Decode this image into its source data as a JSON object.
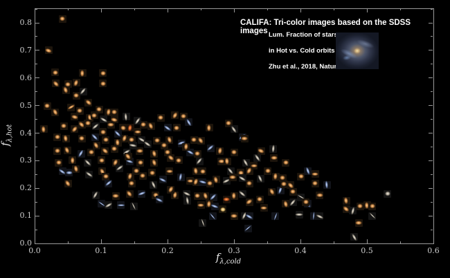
{
  "header": {
    "title": "CALIFA: Tri-color images based on the SDSS images",
    "annotation_lines": [
      "Lum. Fraction of stars",
      "in Hot vs. Cold orbits",
      "Zhu et al., 2018, Nature"
    ]
  },
  "inset": {
    "description": "spiral-galaxy-thumbnail"
  },
  "colors": {
    "background": "#000000",
    "frame": "#9a9a9a",
    "tick_label": "#cccccc",
    "title_text": "#ffffff"
  },
  "chart_data": {
    "type": "scatter",
    "title": "CALIFA: Tri-color images based on the SDSS images",
    "xlabel_base": "f",
    "xlabel_sub": "λ,cold",
    "ylabel_base": "f",
    "ylabel_sub": "λ,hot",
    "xlim": [
      0,
      0.6
    ],
    "ylim": [
      0,
      0.85
    ],
    "x_ticks": [
      "0.0",
      "0.1",
      "0.2",
      "0.3",
      "0.4",
      "0.5",
      "0.6"
    ],
    "y_ticks": [
      "0.0",
      "0.1",
      "0.2",
      "0.3",
      "0.4",
      "0.5",
      "0.6",
      "0.7",
      "0.8"
    ],
    "grid": false,
    "legend": "none",
    "marker": "galaxy-thumbnail",
    "palette": {
      "o": {
        "core": "#ffd9a0",
        "mid": "#cd8845",
        "bg": "#1d150c"
      },
      "r": {
        "core": "#ffb474",
        "mid": "#cf5a1e",
        "bg": "#1d120a"
      },
      "b": {
        "core": "#dbe6fb",
        "mid": "#8098c8",
        "bg": "#12141a"
      },
      "w": {
        "core": "#f2efe6",
        "mid": "#b0a898",
        "bg": "#141414"
      },
      "y": {
        "core": "#fff3cd",
        "mid": "#e6bc6a",
        "bg": "#1d170c"
      }
    },
    "elongation_classes": {
      "1": [
        8,
        7
      ],
      "2": [
        10,
        5.5
      ],
      "3": [
        12,
        3.5
      ],
      "4": [
        13,
        2.2
      ]
    },
    "points": [
      [
        0.042,
        0.815,
        "o",
        0,
        1
      ],
      [
        0.021,
        0.7,
        "o",
        20,
        2
      ],
      [
        0.031,
        0.62,
        "o",
        0,
        1
      ],
      [
        0.072,
        0.617,
        "o",
        90,
        2
      ],
      [
        0.103,
        0.617,
        "o",
        0,
        1
      ],
      [
        0.032,
        0.58,
        "o",
        45,
        2
      ],
      [
        0.05,
        0.577,
        "o",
        0,
        1
      ],
      [
        0.063,
        0.582,
        "o",
        110,
        2
      ],
      [
        0.103,
        0.58,
        "o",
        0,
        1
      ],
      [
        0.047,
        0.556,
        "o",
        70,
        2
      ],
      [
        0.063,
        0.536,
        "o",
        0,
        1
      ],
      [
        0.073,
        0.551,
        "w",
        130,
        3
      ],
      [
        0.019,
        0.499,
        "o",
        0,
        1
      ],
      [
        0.031,
        0.476,
        "o",
        60,
        2
      ],
      [
        0.055,
        0.494,
        "o",
        150,
        3
      ],
      [
        0.068,
        0.481,
        "o",
        0,
        1
      ],
      [
        0.081,
        0.511,
        "o",
        40,
        2
      ],
      [
        0.097,
        0.486,
        "o",
        0,
        1
      ],
      [
        0.111,
        0.476,
        "o",
        100,
        2
      ],
      [
        0.12,
        0.476,
        "o",
        0,
        1
      ],
      [
        0.083,
        0.456,
        "o",
        75,
        2
      ],
      [
        0.104,
        0.449,
        "w",
        30,
        3
      ],
      [
        0.19,
        0.456,
        "o",
        0,
        1
      ],
      [
        0.211,
        0.464,
        "o",
        120,
        2
      ],
      [
        0.224,
        0.461,
        "o",
        0,
        1
      ],
      [
        0.232,
        0.439,
        "b",
        60,
        3
      ],
      [
        0.014,
        0.414,
        "o",
        85,
        2
      ],
      [
        0.044,
        0.426,
        "o",
        0,
        1
      ],
      [
        0.071,
        0.431,
        "o",
        45,
        2
      ],
      [
        0.08,
        0.436,
        "o",
        0,
        1
      ],
      [
        0.092,
        0.424,
        "w",
        140,
        3
      ],
      [
        0.115,
        0.431,
        "o",
        0,
        2
      ],
      [
        0.133,
        0.419,
        "o",
        20,
        1
      ],
      [
        0.144,
        0.419,
        "r",
        100,
        2
      ],
      [
        0.164,
        0.431,
        "o",
        0,
        1
      ],
      [
        0.175,
        0.426,
        "o",
        65,
        2
      ],
      [
        0.2,
        0.419,
        "b",
        35,
        3
      ],
      [
        0.214,
        0.419,
        "o",
        0,
        1
      ],
      [
        0.263,
        0.419,
        "o",
        90,
        2
      ],
      [
        0.292,
        0.436,
        "o",
        0,
        1
      ],
      [
        0.3,
        0.414,
        "w",
        55,
        3
      ],
      [
        0.12,
        0.45,
        "o",
        15,
        2
      ],
      [
        0.155,
        0.445,
        "w",
        125,
        3
      ],
      [
        0.034,
        0.386,
        "o",
        0,
        1
      ],
      [
        0.047,
        0.381,
        "o",
        80,
        2
      ],
      [
        0.071,
        0.381,
        "o",
        0,
        1
      ],
      [
        0.091,
        0.386,
        "b",
        45,
        3
      ],
      [
        0.107,
        0.376,
        "o",
        0,
        1
      ],
      [
        0.135,
        0.381,
        "o",
        110,
        2
      ],
      [
        0.146,
        0.376,
        "o",
        0,
        1
      ],
      [
        0.161,
        0.376,
        "w",
        30,
        3
      ],
      [
        0.184,
        0.373,
        "o",
        0,
        1
      ],
      [
        0.203,
        0.376,
        "o",
        70,
        2
      ],
      [
        0.313,
        0.386,
        "b",
        140,
        3
      ],
      [
        0.316,
        0.381,
        "o",
        0,
        2
      ],
      [
        0.341,
        0.336,
        "o",
        25,
        2
      ],
      [
        0.359,
        0.343,
        "w",
        95,
        3
      ],
      [
        0.24,
        0.376,
        "o",
        0,
        1
      ],
      [
        0.25,
        0.373,
        "o",
        55,
        2
      ],
      [
        0.221,
        0.363,
        "b",
        160,
        3
      ],
      [
        0.125,
        0.365,
        "o",
        85,
        2
      ],
      [
        0.17,
        0.36,
        "w",
        35,
        3
      ],
      [
        0.034,
        0.336,
        "o",
        0,
        1
      ],
      [
        0.049,
        0.338,
        "o",
        65,
        2
      ],
      [
        0.07,
        0.326,
        "b",
        120,
        3
      ],
      [
        0.085,
        0.331,
        "o",
        0,
        1
      ],
      [
        0.106,
        0.336,
        "o",
        40,
        2
      ],
      [
        0.12,
        0.343,
        "o",
        0,
        1
      ],
      [
        0.139,
        0.331,
        "w",
        150,
        3
      ],
      [
        0.158,
        0.336,
        "o",
        0,
        2
      ],
      [
        0.18,
        0.326,
        "o",
        75,
        2
      ],
      [
        0.2,
        0.331,
        "o",
        0,
        1
      ],
      [
        0.234,
        0.331,
        "b",
        30,
        3
      ],
      [
        0.245,
        0.326,
        "o",
        0,
        1
      ],
      [
        0.279,
        0.336,
        "o",
        100,
        2
      ],
      [
        0.318,
        0.293,
        "w",
        60,
        3
      ],
      [
        0.33,
        0.281,
        "o",
        0,
        2
      ],
      [
        0.036,
        0.293,
        "o",
        0,
        1
      ],
      [
        0.057,
        0.301,
        "o",
        90,
        2
      ],
      [
        0.08,
        0.293,
        "w",
        45,
        3
      ],
      [
        0.101,
        0.301,
        "o",
        0,
        1
      ],
      [
        0.122,
        0.293,
        "o",
        115,
        2
      ],
      [
        0.143,
        0.298,
        "b",
        20,
        3
      ],
      [
        0.159,
        0.293,
        "o",
        0,
        1
      ],
      [
        0.18,
        0.293,
        "o",
        70,
        2
      ],
      [
        0.217,
        0.301,
        "o",
        0,
        1
      ],
      [
        0.248,
        0.298,
        "w",
        130,
        3
      ],
      [
        0.281,
        0.298,
        "o",
        0,
        2
      ],
      [
        0.29,
        0.298,
        "o",
        85,
        2
      ],
      [
        0.205,
        0.31,
        "o",
        40,
        2
      ],
      [
        0.378,
        0.293,
        "o",
        0,
        1
      ],
      [
        0.141,
        0.315,
        "o",
        50,
        2
      ],
      [
        0.042,
        0.261,
        "b",
        35,
        3
      ],
      [
        0.052,
        0.256,
        "b",
        0,
        2
      ],
      [
        0.102,
        0.261,
        "o",
        60,
        2
      ],
      [
        0.107,
        0.243,
        "o",
        0,
        1
      ],
      [
        0.128,
        0.273,
        "w",
        145,
        3
      ],
      [
        0.153,
        0.263,
        "o",
        0,
        1
      ],
      [
        0.144,
        0.243,
        "o",
        105,
        2
      ],
      [
        0.177,
        0.256,
        "o",
        0,
        1
      ],
      [
        0.193,
        0.231,
        "b",
        25,
        3
      ],
      [
        0.203,
        0.261,
        "o",
        0,
        2
      ],
      [
        0.243,
        0.263,
        "o",
        80,
        2
      ],
      [
        0.253,
        0.261,
        "o",
        0,
        1
      ],
      [
        0.295,
        0.263,
        "w",
        50,
        3
      ],
      [
        0.31,
        0.256,
        "o",
        0,
        1
      ],
      [
        0.323,
        0.263,
        "o",
        120,
        2
      ],
      [
        0.351,
        0.263,
        "o",
        0,
        1
      ],
      [
        0.411,
        0.263,
        "b",
        70,
        3
      ],
      [
        0.422,
        0.251,
        "o",
        0,
        2
      ],
      [
        0.313,
        0.236,
        "w",
        30,
        3
      ],
      [
        0.373,
        0.238,
        "o",
        0,
        1
      ],
      [
        0.363,
        0.243,
        "o",
        95,
        2
      ],
      [
        0.401,
        0.243,
        "o",
        0,
        1
      ],
      [
        0.05,
        0.218,
        "o",
        55,
        2
      ],
      [
        0.111,
        0.218,
        "b",
        140,
        3
      ],
      [
        0.146,
        0.218,
        "o",
        0,
        1
      ],
      [
        0.179,
        0.213,
        "w",
        65,
        3
      ],
      [
        0.234,
        0.226,
        "o",
        0,
        2
      ],
      [
        0.243,
        0.223,
        "o",
        110,
        2
      ],
      [
        0.253,
        0.223,
        "b",
        15,
        3
      ],
      [
        0.264,
        0.218,
        "o",
        0,
        1
      ],
      [
        0.273,
        0.231,
        "o",
        75,
        2
      ],
      [
        0.289,
        0.226,
        "w",
        155,
        3
      ],
      [
        0.323,
        0.218,
        "o",
        0,
        1
      ],
      [
        0.385,
        0.211,
        "o",
        45,
        2
      ],
      [
        0.422,
        0.218,
        "o",
        0,
        1
      ],
      [
        0.44,
        0.213,
        "b",
        85,
        3
      ],
      [
        0.092,
        0.175,
        "w",
        120,
        3
      ],
      [
        0.122,
        0.173,
        "o",
        0,
        2
      ],
      [
        0.143,
        0.18,
        "o",
        50,
        2
      ],
      [
        0.161,
        0.18,
        "b",
        160,
        3
      ],
      [
        0.182,
        0.175,
        "o",
        0,
        1
      ],
      [
        0.211,
        0.175,
        "o",
        100,
        2
      ],
      [
        0.229,
        0.18,
        "w",
        25,
        3
      ],
      [
        0.245,
        0.173,
        "o",
        0,
        1
      ],
      [
        0.257,
        0.173,
        "o",
        70,
        2
      ],
      [
        0.269,
        0.168,
        "b",
        135,
        3
      ],
      [
        0.289,
        0.16,
        "r",
        0,
        2
      ],
      [
        0.3,
        0.173,
        "o",
        90,
        2
      ],
      [
        0.313,
        0.18,
        "w",
        40,
        3
      ],
      [
        0.339,
        0.16,
        "o",
        0,
        1
      ],
      [
        0.357,
        0.188,
        "o",
        60,
        2
      ],
      [
        0.37,
        0.193,
        "b",
        110,
        3
      ],
      [
        0.389,
        0.188,
        "o",
        0,
        1
      ],
      [
        0.401,
        0.168,
        "w",
        30,
        4
      ],
      [
        0.429,
        0.175,
        "o",
        0,
        2
      ],
      [
        0.469,
        0.155,
        "o",
        80,
        2
      ],
      [
        0.531,
        0.18,
        "w",
        0,
        1
      ],
      [
        0.323,
        0.15,
        "o",
        145,
        2
      ],
      [
        0.411,
        0.143,
        "b",
        55,
        3
      ],
      [
        0.101,
        0.143,
        "b",
        35,
        4
      ],
      [
        0.111,
        0.138,
        "w",
        150,
        3
      ],
      [
        0.13,
        0.138,
        "b",
        0,
        3
      ],
      [
        0.149,
        0.135,
        "w",
        65,
        4
      ],
      [
        0.25,
        0.138,
        "o",
        0,
        2
      ],
      [
        0.263,
        0.143,
        "o",
        95,
        2
      ],
      [
        0.271,
        0.135,
        "b",
        20,
        3
      ],
      [
        0.283,
        0.123,
        "y",
        0,
        1
      ],
      [
        0.378,
        0.143,
        "o",
        75,
        2
      ],
      [
        0.389,
        0.148,
        "w",
        130,
        3
      ],
      [
        0.408,
        0.15,
        "o",
        0,
        1
      ],
      [
        0.469,
        0.125,
        "o",
        40,
        2
      ],
      [
        0.479,
        0.118,
        "w",
        105,
        3
      ],
      [
        0.49,
        0.135,
        "o",
        0,
        1
      ],
      [
        0.5,
        0.138,
        "o",
        85,
        2
      ],
      [
        0.508,
        0.135,
        "o",
        0,
        1
      ],
      [
        0.268,
        0.098,
        "b",
        50,
        4
      ],
      [
        0.3,
        0.1,
        "o",
        0,
        2
      ],
      [
        0.316,
        0.1,
        "w",
        115,
        3
      ],
      [
        0.323,
        0.098,
        "b",
        30,
        3
      ],
      [
        0.253,
        0.075,
        "w",
        70,
        4
      ],
      [
        0.321,
        0.055,
        "b",
        140,
        4
      ],
      [
        0.398,
        0.105,
        "w",
        0,
        3
      ],
      [
        0.42,
        0.1,
        "b",
        95,
        4
      ],
      [
        0.429,
        0.098,
        "w",
        25,
        3
      ],
      [
        0.508,
        0.1,
        "w",
        45,
        4
      ],
      [
        0.488,
        0.075,
        "o",
        0,
        2
      ],
      [
        0.481,
        0.023,
        "w",
        60,
        3
      ],
      [
        0.06,
        0.46,
        "o",
        15,
        2
      ],
      [
        0.09,
        0.465,
        "o",
        0,
        1
      ],
      [
        0.138,
        0.46,
        "w",
        85,
        3
      ],
      [
        0.06,
        0.415,
        "o",
        130,
        2
      ],
      [
        0.103,
        0.405,
        "o",
        0,
        1
      ],
      [
        0.125,
        0.398,
        "b",
        45,
        3
      ],
      [
        0.155,
        0.405,
        "o",
        0,
        2
      ],
      [
        0.093,
        0.355,
        "o",
        60,
        2
      ],
      [
        0.148,
        0.355,
        "w",
        10,
        3
      ],
      [
        0.195,
        0.355,
        "o",
        0,
        1
      ],
      [
        0.228,
        0.35,
        "o",
        95,
        2
      ],
      [
        0.265,
        0.345,
        "b",
        140,
        3
      ],
      [
        0.3,
        0.33,
        "o",
        0,
        1
      ],
      [
        0.335,
        0.31,
        "w",
        55,
        3
      ],
      [
        0.36,
        0.31,
        "o",
        0,
        2
      ],
      [
        0.062,
        0.27,
        "o",
        75,
        2
      ],
      [
        0.082,
        0.25,
        "w",
        35,
        3
      ],
      [
        0.163,
        0.245,
        "o",
        0,
        1
      ],
      [
        0.22,
        0.24,
        "b",
        100,
        3
      ],
      [
        0.298,
        0.24,
        "o",
        0,
        2
      ],
      [
        0.34,
        0.235,
        "w",
        65,
        3
      ],
      [
        0.375,
        0.215,
        "o",
        0,
        1
      ],
      [
        0.205,
        0.195,
        "o",
        120,
        2
      ],
      [
        0.188,
        0.158,
        "b",
        25,
        3
      ],
      [
        0.23,
        0.155,
        "w",
        80,
        3
      ],
      [
        0.345,
        0.128,
        "o",
        0,
        2
      ],
      [
        0.362,
        0.098,
        "b",
        110,
        4
      ]
    ]
  }
}
